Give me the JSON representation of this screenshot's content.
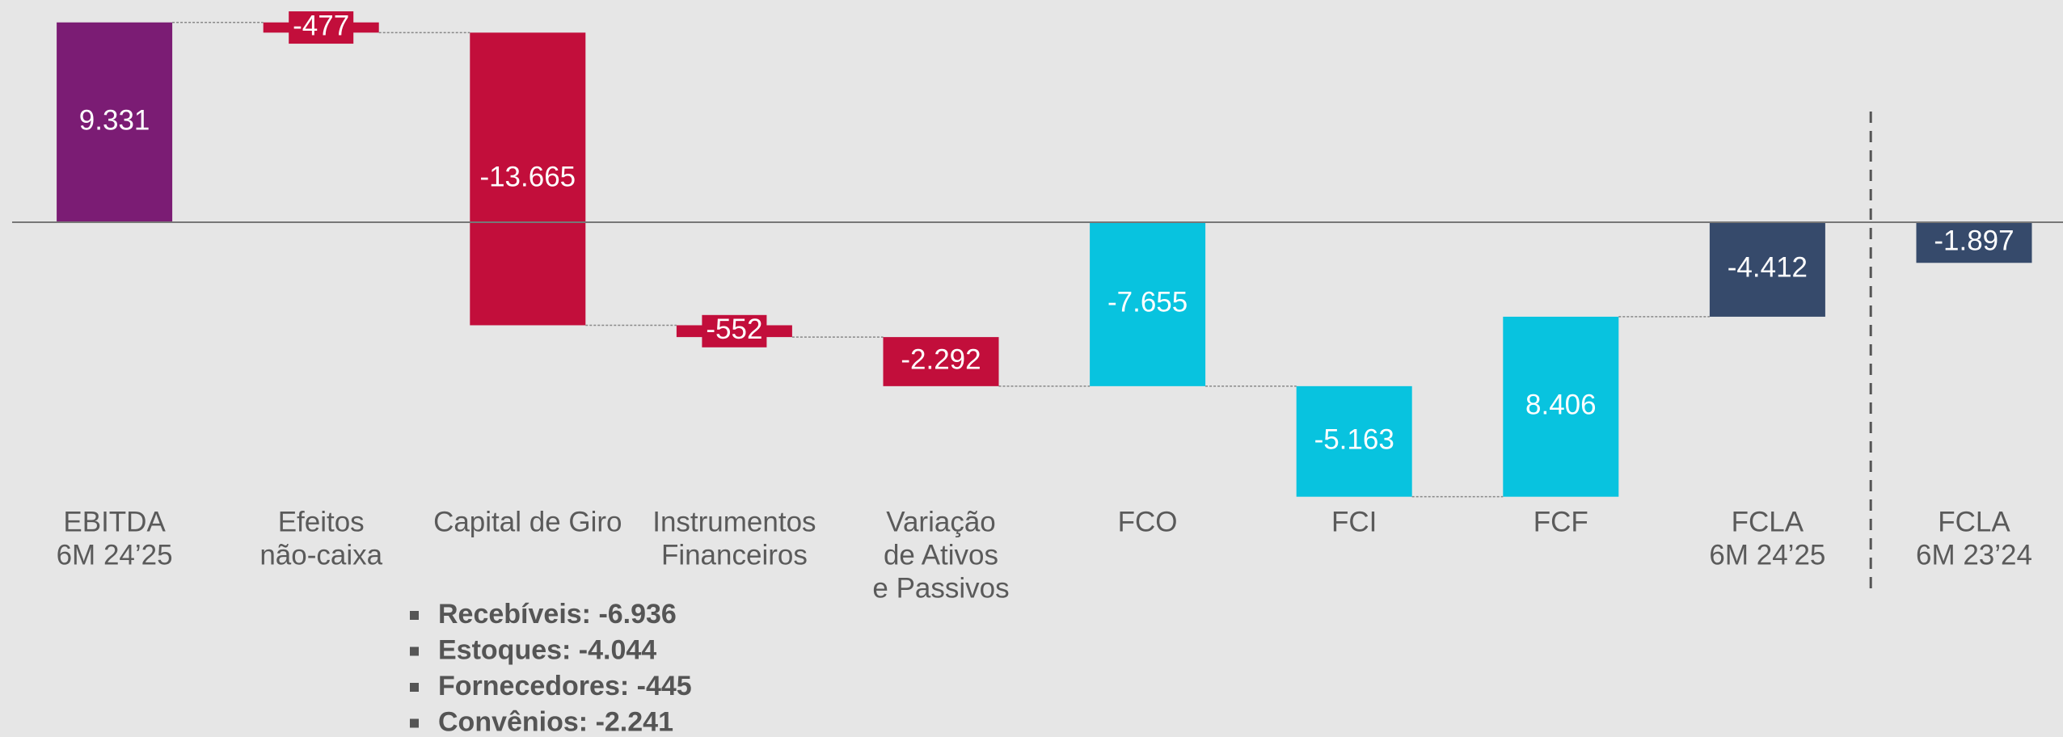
{
  "chart_data": {
    "type": "waterfall",
    "categories": [
      [
        "EBITDA",
        "6M 24’25"
      ],
      [
        "Efeitos",
        "não-caixa"
      ],
      [
        "Capital de Giro"
      ],
      [
        "Instrumentos",
        "Financeiros"
      ],
      [
        "Variação",
        "de Ativos",
        "e Passivos"
      ],
      [
        "FCO"
      ],
      [
        "FCI"
      ],
      [
        "FCF"
      ],
      [
        "FCLA",
        "6M 24’25"
      ],
      [
        "FCLA",
        "6M 23’24"
      ]
    ],
    "values": [
      9331,
      -477,
      -13665,
      -552,
      -2292,
      -7655,
      -5163,
      8406,
      -4412,
      -1897
    ],
    "value_labels": [
      "9.331",
      "-477",
      "-13.665",
      "-552",
      "-2.292",
      "-7.655",
      "-5.163",
      "8.406",
      "-4.412",
      "-1.897"
    ],
    "totals": [
      true,
      false,
      false,
      false,
      false,
      true,
      false,
      false,
      true,
      true
    ],
    "colors": [
      "#7b1c74",
      "#c20e3b",
      "#c20e3b",
      "#c20e3b",
      "#c20e3b",
      "#08c3df",
      "#08c3df",
      "#08c3df",
      "#364a6b",
      "#364a6b"
    ],
    "separator_after": 8,
    "ylim": [
      -14000,
      10000
    ],
    "notes": [
      "Recebíveis: -6.936",
      "Estoques: -4.044",
      "Fornecedores: -445",
      "Convênios: -2.241"
    ]
  }
}
